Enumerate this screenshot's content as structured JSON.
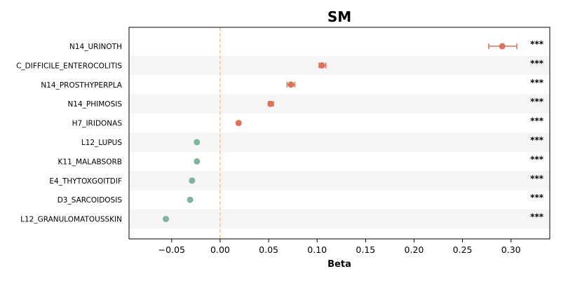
{
  "chart_data": {
    "type": "scatter",
    "title": "SM",
    "xlabel": "Beta",
    "ylabel": "",
    "xlim": [
      -0.094,
      0.34
    ],
    "xticks": [
      -0.05,
      0.0,
      0.05,
      0.1,
      0.15,
      0.2,
      0.25,
      0.3
    ],
    "xtick_labels": [
      "−0.05",
      "0.00",
      "0.05",
      "0.10",
      "0.15",
      "0.20",
      "0.25",
      "0.30"
    ],
    "reference_line": 0.0,
    "reference_line_color": "#f5c67e",
    "positive_color": "#d9735a",
    "negative_color": "#82b39c",
    "band_color": "#f5f5f5",
    "grid": false,
    "categories": [
      "N14_URINOTH",
      "C_DIFFICILE_ENTEROCOLITIS",
      "N14_PROSTHYPERPLA",
      "N14_PHIMOSIS",
      "H7_IRIDONAS",
      "L12_LUPUS",
      "K11_MALABSORB",
      "E4_THYTOXGOITDIF",
      "D3_SARCOIDOSIS",
      "L12_GRANULOMATOUSSKIN"
    ],
    "values": [
      0.291,
      0.105,
      0.073,
      0.052,
      0.019,
      -0.024,
      -0.024,
      -0.029,
      -0.031,
      -0.056
    ],
    "ci_low": [
      0.277,
      0.102,
      0.069,
      0.05,
      0.018,
      -0.025,
      -0.025,
      -0.03,
      -0.032,
      -0.057
    ],
    "ci_high": [
      0.306,
      0.109,
      0.077,
      0.055,
      0.02,
      -0.023,
      -0.023,
      -0.028,
      -0.03,
      -0.055
    ],
    "annotations": [
      "***",
      "***",
      "***",
      "***",
      "***",
      "***",
      "***",
      "***",
      "***",
      "***"
    ]
  }
}
